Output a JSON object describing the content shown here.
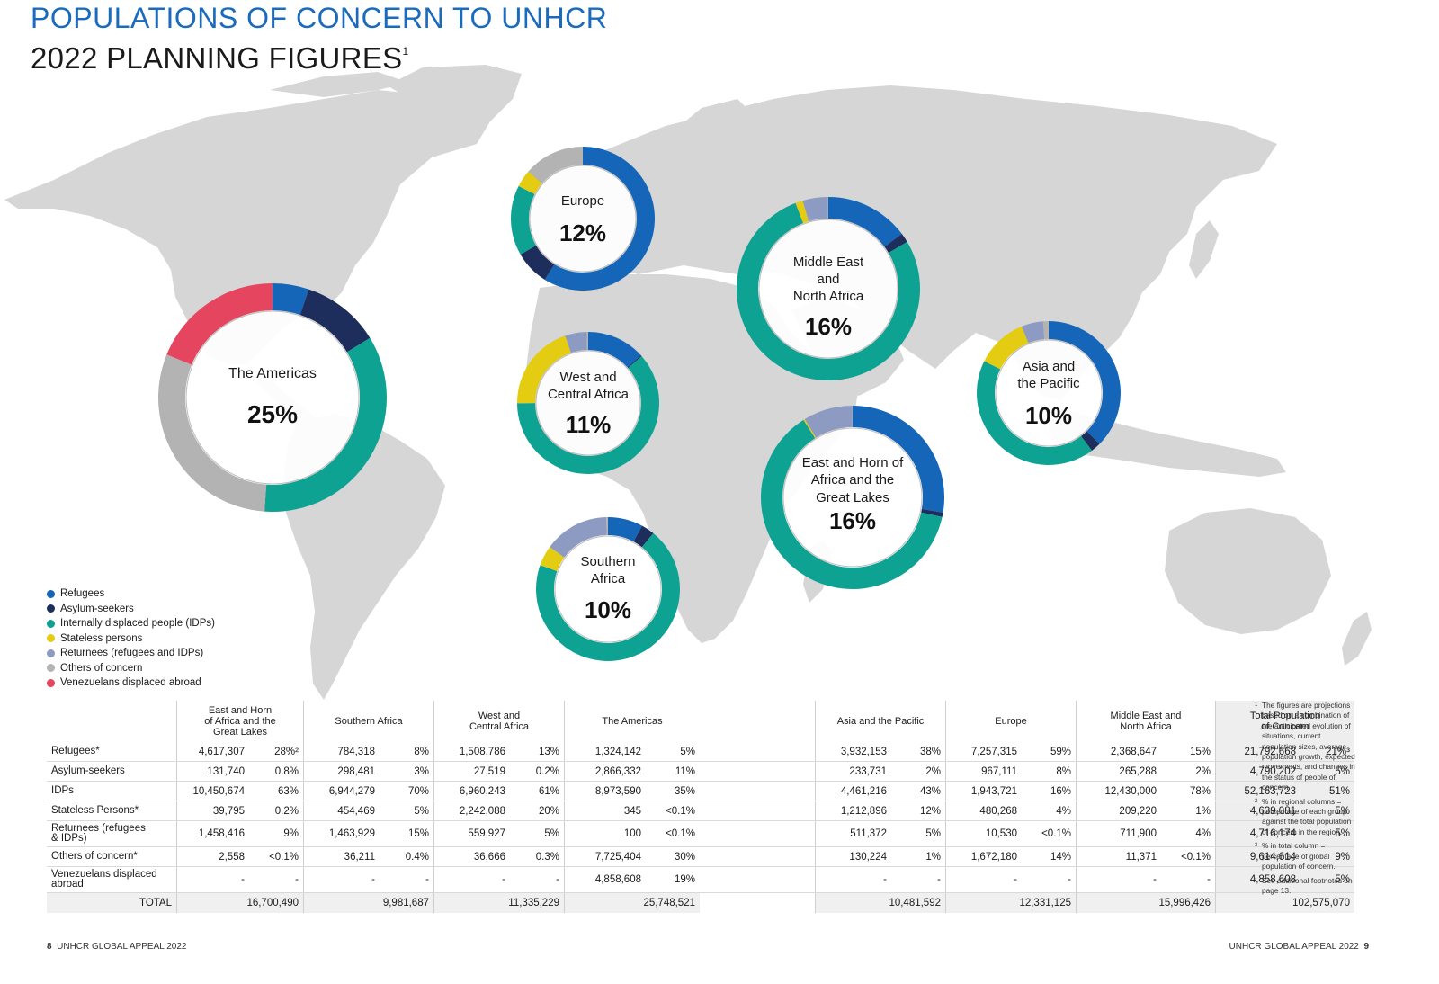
{
  "title": "POPULATIONS OF CONCERN TO UNHCR",
  "subtitle": "2022 PLANNING FIGURES",
  "subtitle_sup": "1",
  "colors": {
    "Refugees": "#1565b8",
    "Asylum-seekers": "#1e2e5c",
    "Internally displaced people (IDPs)": "#0ea293",
    "Stateless persons": "#e3cc12",
    "Returnees (refugees and IDPs)": "#8d9ac2",
    "Others of concern": "#b3b3b3",
    "Venezuelans displaced abroad": "#e5455e",
    "map": "#d6d6d6"
  },
  "legend": [
    {
      "label": "Refugees",
      "key": "Refugees"
    },
    {
      "label": "Asylum-seekers",
      "key": "Asylum-seekers"
    },
    {
      "label": "Internally displaced people (IDPs)",
      "key": "Internally displaced people (IDPs)"
    },
    {
      "label": "Stateless persons",
      "key": "Stateless persons"
    },
    {
      "label": "Returnees (refugees and IDPs)",
      "key": "Returnees (refugees and IDPs)"
    },
    {
      "label": "Others of concern",
      "key": "Others of concern"
    },
    {
      "label": "Venezuelans displaced abroad",
      "key": "Venezuelans displaced abroad"
    }
  ],
  "chart_data": {
    "type": "pie",
    "series_keys": [
      "Refugees",
      "Asylum-seekers",
      "Internally displaced people (IDPs)",
      "Stateless persons",
      "Returnees (refugees and IDPs)",
      "Others of concern",
      "Venezuelans displaced abroad"
    ],
    "regions": [
      {
        "id": "americas",
        "name": [
          "The Americas"
        ],
        "share": "25%",
        "values": [
          1324142,
          2866332,
          8973590,
          345,
          100,
          7725404,
          4858608
        ]
      },
      {
        "id": "europe",
        "name": [
          "Europe"
        ],
        "share": "12%",
        "values": [
          7257315,
          967111,
          1943721,
          480268,
          10530,
          1672180,
          0
        ]
      },
      {
        "id": "wca",
        "name": [
          "West and",
          "Central Africa"
        ],
        "share": "11%",
        "values": [
          1508786,
          27519,
          6960243,
          2242088,
          559927,
          36666,
          0
        ]
      },
      {
        "id": "southern",
        "name": [
          "Southern",
          "Africa"
        ],
        "share": "10%",
        "values": [
          784318,
          298481,
          6944279,
          454469,
          1463929,
          36211,
          0
        ]
      },
      {
        "id": "mena",
        "name": [
          "Middle East",
          "and",
          "North Africa"
        ],
        "share": "16%",
        "values": [
          2368647,
          265288,
          12430000,
          209220,
          711900,
          11371,
          0
        ]
      },
      {
        "id": "ehagl",
        "name": [
          "East and Horn of",
          "Africa and the",
          "Great Lakes"
        ],
        "share": "16%",
        "values": [
          4617307,
          131740,
          10450674,
          39795,
          1458416,
          2558,
          0
        ]
      },
      {
        "id": "asia",
        "name": [
          "Asia and",
          "the Pacific"
        ],
        "share": "10%",
        "values": [
          3932153,
          233731,
          4461216,
          1212896,
          511372,
          130224,
          0
        ]
      }
    ]
  },
  "table": {
    "headers": [
      [
        "East and Horn",
        "of Africa and the",
        "Great Lakes"
      ],
      [
        "Southern Africa"
      ],
      [
        "West and",
        "Central Africa"
      ],
      [
        "The Americas"
      ],
      [
        "Asia and the Pacific"
      ],
      [
        "Europe"
      ],
      [
        "Middle East and",
        "North Africa"
      ],
      [
        "Total Population",
        "of Concern"
      ]
    ],
    "rows": [
      {
        "label": [
          "Refugees*"
        ],
        "cells": [
          [
            "4,617,307",
            "28%²"
          ],
          [
            "784,318",
            "8%"
          ],
          [
            "1,508,786",
            "13%"
          ],
          [
            "1,324,142",
            "5%"
          ],
          [
            "3,932,153",
            "38%"
          ],
          [
            "7,257,315",
            "59%"
          ],
          [
            "2,368,647",
            "15%"
          ],
          [
            "21,792,668",
            "21%³"
          ]
        ]
      },
      {
        "label": [
          "Asylum-seekers"
        ],
        "cells": [
          [
            "131,740",
            "0.8%"
          ],
          [
            "298,481",
            "3%"
          ],
          [
            "27,519",
            "0.2%"
          ],
          [
            "2,866,332",
            "11%"
          ],
          [
            "233,731",
            "2%"
          ],
          [
            "967,111",
            "8%"
          ],
          [
            "265,288",
            "2%"
          ],
          [
            "4,790,202",
            "5%"
          ]
        ]
      },
      {
        "label": [
          "IDPs"
        ],
        "cells": [
          [
            "10,450,674",
            "63%"
          ],
          [
            "6,944,279",
            "70%"
          ],
          [
            "6,960,243",
            "61%"
          ],
          [
            "8,973,590",
            "35%"
          ],
          [
            "4,461,216",
            "43%"
          ],
          [
            "1,943,721",
            "16%"
          ],
          [
            "12,430,000",
            "78%"
          ],
          [
            "52,163,723",
            "51%"
          ]
        ]
      },
      {
        "label": [
          "Stateless Persons*"
        ],
        "cells": [
          [
            "39,795",
            "0.2%"
          ],
          [
            "454,469",
            "5%"
          ],
          [
            "2,242,088",
            "20%"
          ],
          [
            "345",
            "<0.1%"
          ],
          [
            "1,212,896",
            "12%"
          ],
          [
            "480,268",
            "4%"
          ],
          [
            "209,220",
            "1%"
          ],
          [
            "4,639,081",
            "5%"
          ]
        ]
      },
      {
        "label": [
          "Returnees (refugees",
          "& IDPs)"
        ],
        "cells": [
          [
            "1,458,416",
            "9%"
          ],
          [
            "1,463,929",
            "15%"
          ],
          [
            "559,927",
            "5%"
          ],
          [
            "100",
            "<0.1%"
          ],
          [
            "511,372",
            "5%"
          ],
          [
            "10,530",
            "<0.1%"
          ],
          [
            "711,900",
            "4%"
          ],
          [
            "4,716,174",
            "5%"
          ]
        ]
      },
      {
        "label": [
          "Others of concern*"
        ],
        "cells": [
          [
            "2,558",
            "<0.1%"
          ],
          [
            "36,211",
            "0.4%"
          ],
          [
            "36,666",
            "0.3%"
          ],
          [
            "7,725,404",
            "30%"
          ],
          [
            "130,224",
            "1%"
          ],
          [
            "1,672,180",
            "14%"
          ],
          [
            "11,371",
            "<0.1%"
          ],
          [
            "9,614,614",
            "9%"
          ]
        ]
      },
      {
        "label": [
          "Venezuelans displaced",
          "abroad"
        ],
        "cells": [
          [
            "-",
            "-"
          ],
          [
            "-",
            "-"
          ],
          [
            "-",
            "-"
          ],
          [
            "4,858,608",
            "19%"
          ],
          [
            "-",
            "-"
          ],
          [
            "-",
            "-"
          ],
          [
            "-",
            "-"
          ],
          [
            "4,858,608",
            "5%"
          ]
        ]
      }
    ],
    "total_label": "TOTAL",
    "totals": [
      "16,700,490",
      "9,981,687",
      "11,335,229",
      "25,748,521",
      "10,481,592",
      "12,331,125",
      "15,996,426",
      "102,575,070"
    ]
  },
  "notes": [
    {
      "mark": "1",
      "text": "The figures are projections based on a combination of the anticipated evolution of situations, current population sizes, average population growth, expected movements, and changes in the status of people of concern."
    },
    {
      "mark": "2",
      "text": "% in regional columns = percentage of each group against the total population of concern in the region."
    },
    {
      "mark": "3",
      "text": "% in total column = percentage of global population of concern."
    },
    {
      "mark": "*",
      "text": "See additional footnotes on page 13."
    }
  ],
  "footer_left": {
    "page": "8",
    "text": "UNHCR GLOBAL APPEAL 2022"
  },
  "footer_right": {
    "page": "9",
    "text": "UNHCR GLOBAL APPEAL 2022"
  }
}
